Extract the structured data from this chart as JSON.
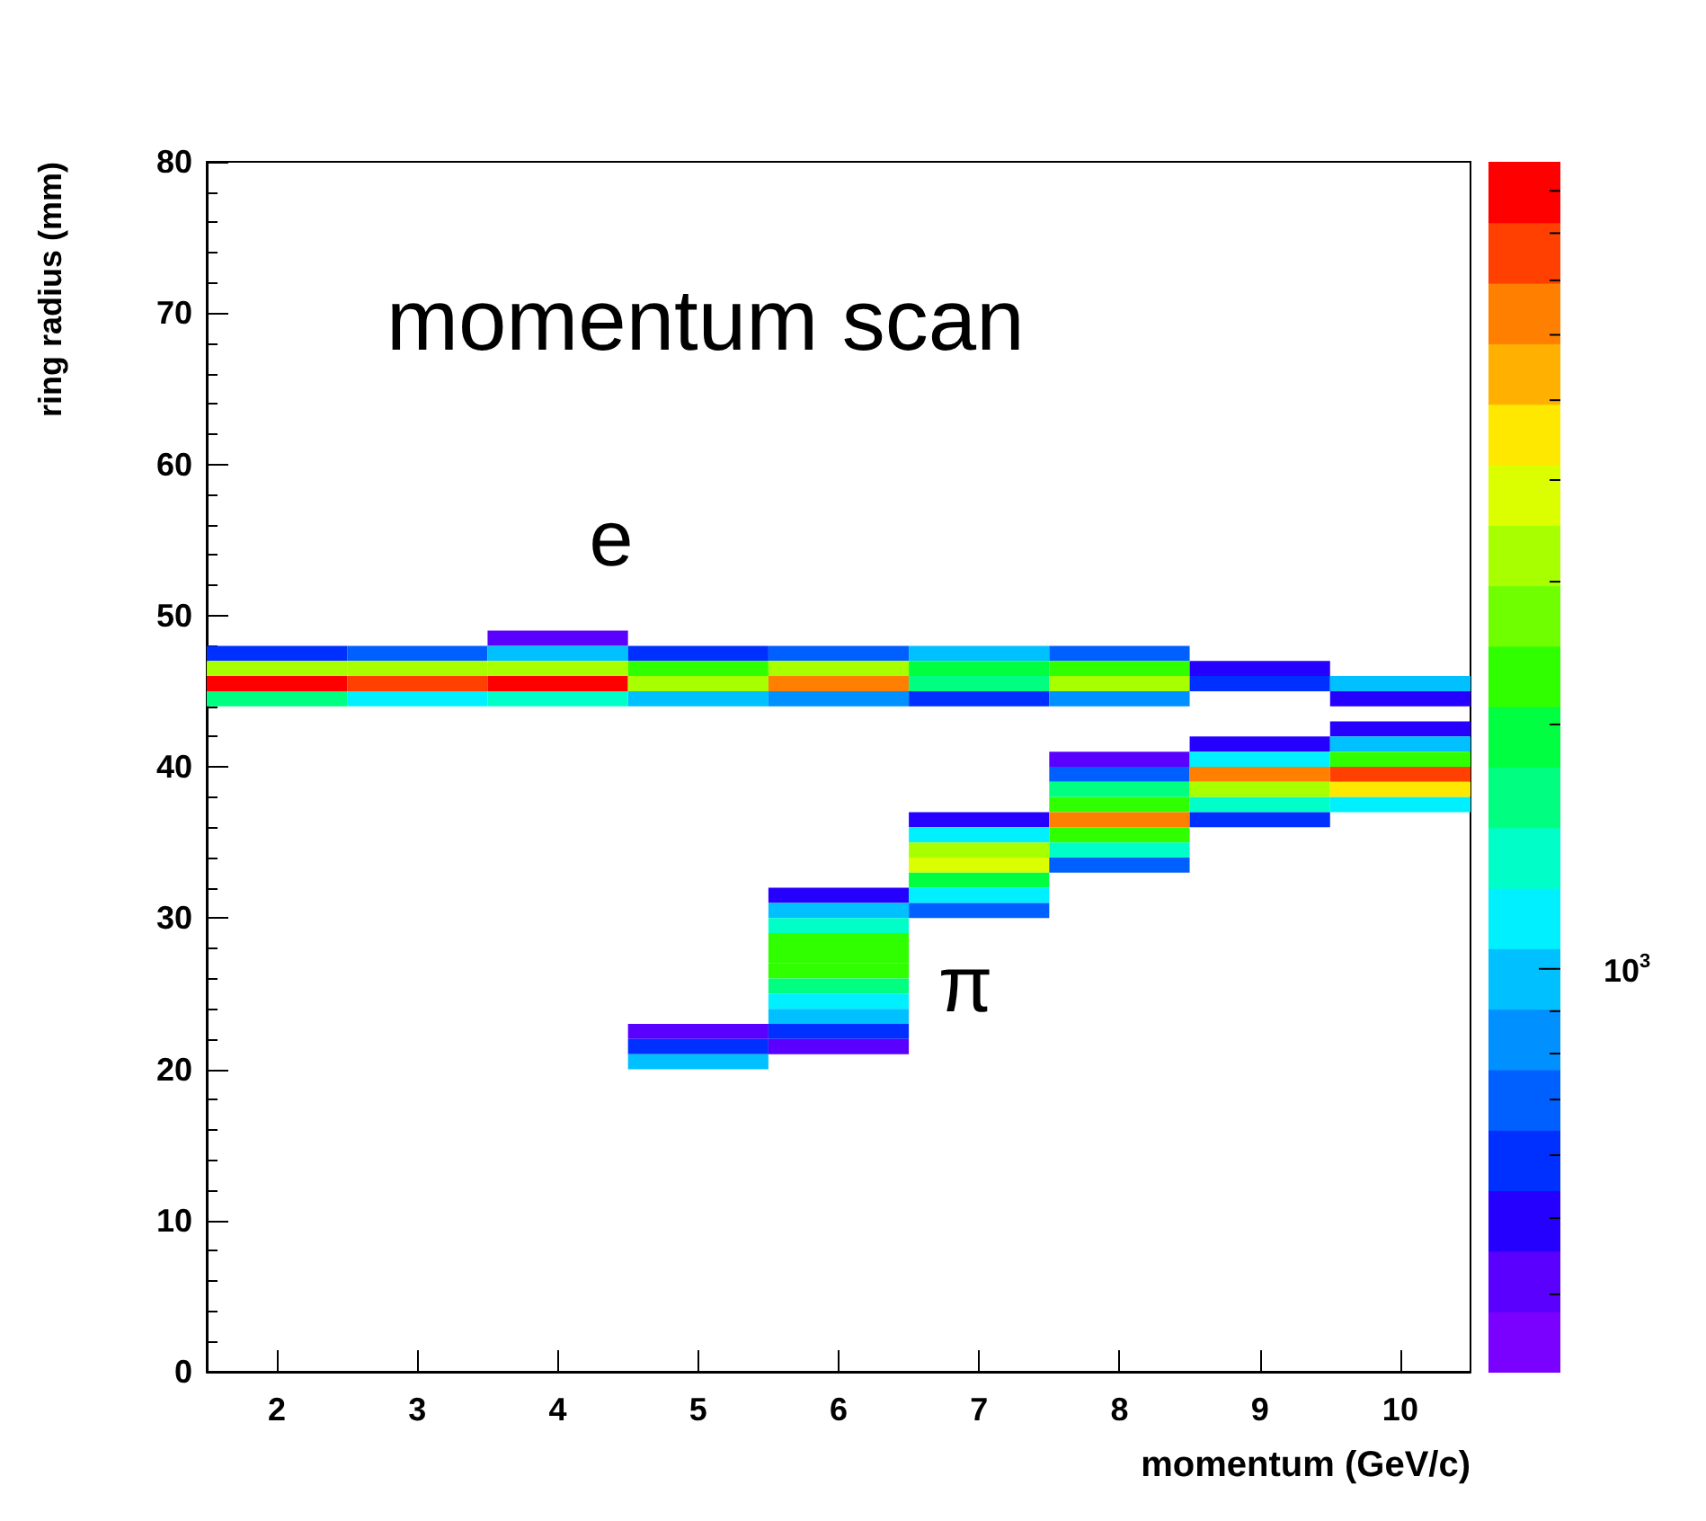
{
  "chart_data": {
    "type": "bar",
    "title": "momentum scan",
    "xlabel": "momentum (GeV/c)",
    "ylabel": "ring radius (mm)",
    "categories": [
      "2",
      "3",
      "4",
      "5",
      "6",
      "7",
      "8",
      "9",
      "10"
    ],
    "ylim": [
      0,
      80
    ],
    "yticks": [
      0,
      10,
      20,
      30,
      40,
      50,
      60,
      70,
      80
    ],
    "annotations": [
      "e",
      "π",
      "10$^{3}$"
    ],
    "series": [
      {
        "values": [
          null,
          null,
          1,
          null,
          null,
          null,
          null,
          null,
          null
        ],
        "base": [
          null,
          null,
          48,
          null,
          null,
          null,
          null,
          null,
          null
        ],
        "colors": [
          null,
          null,
          "#5a00ff",
          null,
          null,
          null,
          null,
          null,
          null
        ]
      },
      {
        "values": [
          1,
          1,
          1,
          1,
          1,
          1,
          1,
          null,
          null
        ],
        "base": [
          47,
          47,
          47,
          47,
          47,
          47,
          47,
          null,
          null
        ],
        "colors": [
          "#0030ff",
          "#0060ff",
          "#00c0ff",
          "#0030ff",
          "#0060ff",
          "#00c0ff",
          "#0060ff",
          null,
          null
        ]
      },
      {
        "values": [
          1,
          1,
          1,
          1,
          1,
          1,
          1,
          1,
          null
        ],
        "base": [
          46,
          46,
          46,
          46,
          46,
          46,
          46,
          46,
          null
        ],
        "colors": [
          "#a8ff00",
          "#a8ff00",
          "#a8ff00",
          "#30ff00",
          "#a8ff00",
          "#00ff40",
          "#30ff00",
          "#2600ff",
          null
        ]
      },
      {
        "values": [
          1,
          1,
          1,
          1,
          1,
          1,
          1,
          1,
          1
        ],
        "base": [
          45,
          45,
          45,
          45,
          45,
          45,
          45,
          45,
          45
        ],
        "colors": [
          "#ff0000",
          "#ff4000",
          "#ff0000",
          "#a8ff00",
          "#ff8000",
          "#00ff80",
          "#a8ff00",
          "#0030ff",
          "#00c0ff"
        ]
      },
      {
        "values": [
          1,
          1,
          1,
          1,
          1,
          1,
          1,
          null,
          1
        ],
        "base": [
          44,
          44,
          44,
          44,
          44,
          44,
          44,
          null,
          44
        ],
        "colors": [
          "#00ff80",
          "#00f0ff",
          "#00ffc8",
          "#00c0ff",
          "#0090ff",
          "#0030ff",
          "#0090ff",
          null,
          "#2600ff"
        ]
      },
      {
        "values": [
          null,
          null,
          null,
          null,
          null,
          null,
          null,
          null,
          1
        ],
        "base": [
          null,
          null,
          null,
          null,
          null,
          null,
          null,
          null,
          42
        ],
        "colors": [
          null,
          null,
          null,
          null,
          null,
          null,
          null,
          null,
          "#2600ff"
        ]
      },
      {
        "values": [
          null,
          null,
          null,
          null,
          null,
          null,
          null,
          1,
          1
        ],
        "base": [
          null,
          null,
          null,
          null,
          null,
          null,
          null,
          41,
          41
        ],
        "colors": [
          null,
          null,
          null,
          null,
          null,
          null,
          null,
          "#2600ff",
          "#00c0ff"
        ]
      },
      {
        "values": [
          null,
          null,
          null,
          null,
          null,
          null,
          1,
          1,
          1
        ],
        "base": [
          null,
          null,
          null,
          null,
          null,
          null,
          40,
          40,
          40
        ],
        "colors": [
          null,
          null,
          null,
          null,
          null,
          null,
          "#5a00ff",
          "#00f0ff",
          "#30ff00"
        ]
      },
      {
        "values": [
          null,
          null,
          null,
          null,
          null,
          null,
          1,
          1,
          1
        ],
        "base": [
          null,
          null,
          null,
          null,
          null,
          null,
          39,
          39,
          39
        ],
        "colors": [
          null,
          null,
          null,
          null,
          null,
          null,
          "#0060ff",
          "#ff8000",
          "#ff4000"
        ]
      },
      {
        "values": [
          null,
          null,
          null,
          null,
          null,
          null,
          1,
          1,
          1
        ],
        "base": [
          null,
          null,
          null,
          null,
          null,
          null,
          38,
          38,
          38
        ],
        "colors": [
          null,
          null,
          null,
          null,
          null,
          null,
          "#00ff80",
          "#a8ff00",
          "#ffe800"
        ]
      },
      {
        "values": [
          null,
          null,
          null,
          null,
          null,
          null,
          1,
          1,
          1
        ],
        "base": [
          null,
          null,
          null,
          null,
          null,
          null,
          37,
          37,
          37
        ],
        "colors": [
          null,
          null,
          null,
          null,
          null,
          null,
          "#30ff00",
          "#00ffc8",
          "#00f0ff"
        ]
      },
      {
        "values": [
          null,
          null,
          null,
          null,
          null,
          1,
          1,
          1,
          null
        ],
        "base": [
          null,
          null,
          null,
          null,
          null,
          36,
          36,
          36,
          null
        ],
        "colors": [
          null,
          null,
          null,
          null,
          null,
          "#2600ff",
          "#ff8000",
          "#0030ff",
          null
        ]
      },
      {
        "values": [
          null,
          null,
          null,
          null,
          null,
          1,
          1,
          null,
          null
        ],
        "base": [
          null,
          null,
          null,
          null,
          null,
          35,
          35,
          null,
          null
        ],
        "colors": [
          null,
          null,
          null,
          null,
          null,
          "#00f0ff",
          "#30ff00",
          null,
          null
        ]
      },
      {
        "values": [
          null,
          null,
          null,
          null,
          null,
          1,
          1,
          null,
          null
        ],
        "base": [
          null,
          null,
          null,
          null,
          null,
          34,
          34,
          null,
          null
        ],
        "colors": [
          null,
          null,
          null,
          null,
          null,
          "#a8ff00",
          "#00ffc8",
          null,
          null
        ]
      },
      {
        "values": [
          null,
          null,
          null,
          null,
          null,
          1,
          1,
          null,
          null
        ],
        "base": [
          null,
          null,
          null,
          null,
          null,
          33,
          33,
          null,
          null
        ],
        "colors": [
          null,
          null,
          null,
          null,
          null,
          "#dcff00",
          "#0060ff",
          null,
          null
        ]
      },
      {
        "values": [
          null,
          null,
          null,
          null,
          null,
          1,
          null,
          null,
          null
        ],
        "base": [
          null,
          null,
          null,
          null,
          null,
          32,
          null,
          null,
          null
        ],
        "colors": [
          null,
          null,
          null,
          null,
          null,
          "#00ff40",
          null,
          null,
          null
        ]
      },
      {
        "values": [
          null,
          null,
          null,
          null,
          1,
          1,
          null,
          null,
          null
        ],
        "base": [
          null,
          null,
          null,
          null,
          31,
          31,
          null,
          null,
          null
        ],
        "colors": [
          null,
          null,
          null,
          null,
          "#2600ff",
          "#00f0ff",
          null,
          null,
          null
        ]
      },
      {
        "values": [
          null,
          null,
          null,
          null,
          1,
          1,
          null,
          null,
          null
        ],
        "base": [
          null,
          null,
          null,
          null,
          30,
          30,
          null,
          null,
          null
        ],
        "colors": [
          null,
          null,
          null,
          null,
          "#00c0ff",
          "#0060ff",
          null,
          null,
          null
        ]
      },
      {
        "values": [
          null,
          null,
          null,
          null,
          1,
          null,
          null,
          null,
          null
        ],
        "base": [
          null,
          null,
          null,
          null,
          29,
          null,
          null,
          null,
          null
        ],
        "colors": [
          null,
          null,
          null,
          null,
          "#00ffc8",
          null,
          null,
          null,
          null
        ]
      },
      {
        "values": [
          null,
          null,
          null,
          null,
          1,
          null,
          null,
          null,
          null
        ],
        "base": [
          null,
          null,
          null,
          null,
          28,
          null,
          null,
          null,
          null
        ],
        "colors": [
          null,
          null,
          null,
          null,
          "#30ff00",
          null,
          null,
          null,
          null
        ]
      },
      {
        "values": [
          null,
          null,
          null,
          null,
          1,
          null,
          null,
          null,
          null
        ],
        "base": [
          null,
          null,
          null,
          null,
          27,
          null,
          null,
          null,
          null
        ],
        "colors": [
          null,
          null,
          null,
          null,
          "#30ff00",
          null,
          null,
          null,
          null
        ]
      },
      {
        "values": [
          null,
          null,
          null,
          null,
          1,
          null,
          null,
          null,
          null
        ],
        "base": [
          null,
          null,
          null,
          null,
          26,
          null,
          null,
          null,
          null
        ],
        "colors": [
          null,
          null,
          null,
          null,
          "#30ff00",
          null,
          null,
          null,
          null
        ]
      },
      {
        "values": [
          null,
          null,
          null,
          null,
          1,
          null,
          null,
          null,
          null
        ],
        "base": [
          null,
          null,
          null,
          null,
          25,
          null,
          null,
          null,
          null
        ],
        "colors": [
          null,
          null,
          null,
          null,
          "#00ff80",
          null,
          null,
          null,
          null
        ]
      },
      {
        "values": [
          null,
          null,
          null,
          null,
          1,
          null,
          null,
          null,
          null
        ],
        "base": [
          null,
          null,
          null,
          null,
          24,
          null,
          null,
          null,
          null
        ],
        "colors": [
          null,
          null,
          null,
          null,
          "#00f0ff",
          null,
          null,
          null,
          null
        ]
      },
      {
        "values": [
          null,
          null,
          null,
          null,
          1,
          null,
          null,
          null,
          null
        ],
        "base": [
          null,
          null,
          null,
          null,
          23,
          null,
          null,
          null,
          null
        ],
        "colors": [
          null,
          null,
          null,
          null,
          "#00c0ff",
          null,
          null,
          null,
          null
        ]
      },
      {
        "values": [
          null,
          null,
          null,
          1,
          1,
          null,
          null,
          null,
          null
        ],
        "base": [
          null,
          null,
          null,
          22,
          22,
          null,
          null,
          null,
          null
        ],
        "colors": [
          null,
          null,
          null,
          "#5a00ff",
          "#0030ff",
          null,
          null,
          null,
          null
        ]
      },
      {
        "values": [
          null,
          null,
          null,
          1,
          1,
          null,
          null,
          null,
          null
        ],
        "base": [
          null,
          null,
          null,
          21,
          21,
          null,
          null,
          null,
          null
        ],
        "colors": [
          null,
          null,
          null,
          "#0030ff",
          "#5a00ff",
          null,
          null,
          null,
          null
        ]
      },
      {
        "values": [
          null,
          null,
          null,
          1,
          null,
          null,
          null,
          null,
          null
        ],
        "base": [
          null,
          null,
          null,
          20,
          null,
          null,
          null,
          null,
          null
        ],
        "colors": [
          null,
          null,
          null,
          "#00c0ff",
          null,
          null,
          null,
          null,
          null
        ]
      }
    ]
  }
}
